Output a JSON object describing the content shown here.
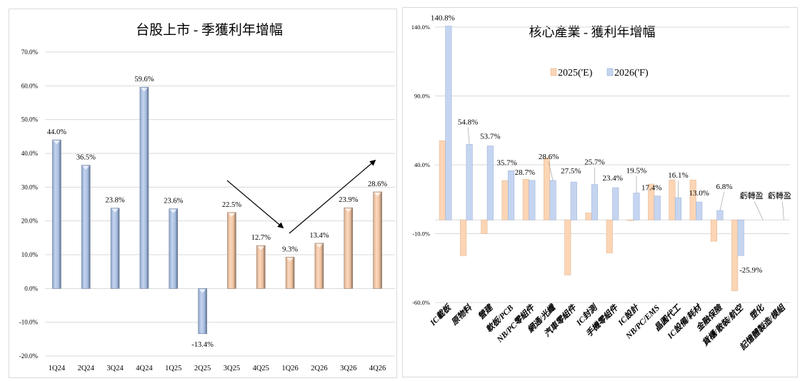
{
  "chart_data": [
    {
      "type": "bar",
      "title": "台股上市 - 季獲利年增幅",
      "xlabel": "",
      "ylabel": "",
      "ylim": [
        -20,
        70
      ],
      "yticks": [
        -20,
        -10,
        0,
        10,
        20,
        30,
        40,
        50,
        60,
        70
      ],
      "ytick_labels": [
        "-20.0%",
        "-10.0%",
        "0.0%",
        "10.0%",
        "20.0%",
        "30.0%",
        "40.0%",
        "50.0%",
        "60.0%",
        "70.0%"
      ],
      "grid": true,
      "categories": [
        "1Q24",
        "2Q24",
        "3Q24",
        "4Q24",
        "1Q25",
        "2Q25",
        "3Q25",
        "4Q25",
        "1Q26",
        "2Q26",
        "3Q26",
        "4Q26"
      ],
      "values": [
        44.0,
        36.5,
        23.8,
        59.6,
        23.6,
        -13.4,
        22.5,
        12.7,
        9.3,
        13.4,
        23.9,
        28.6
      ],
      "data_labels": [
        "44.0%",
        "36.5%",
        "23.8%",
        "59.6%",
        "23.6%",
        "-13.4%",
        "22.5%",
        "12.7%",
        "9.3%",
        "13.4%",
        "23.9%",
        "28.6%"
      ],
      "segments": [
        "actual",
        "actual",
        "actual",
        "actual",
        "actual",
        "actual",
        "forecast",
        "forecast",
        "forecast",
        "forecast",
        "forecast",
        "forecast"
      ],
      "colors": {
        "actual": "#a9bee0",
        "actual_dark": "#6c7fa0",
        "forecast": "#f3c4a2",
        "forecast_dark": "#9a7e6a",
        "arrow": "#000000"
      }
    },
    {
      "type": "bar",
      "title": "核心產業 - 獲利年增幅",
      "xlabel": "",
      "ylabel": "",
      "ylim": [
        -60,
        140
      ],
      "yticks": [
        -60,
        -10,
        40,
        90,
        140
      ],
      "ytick_labels": [
        "-60.0%",
        "-10.0%",
        "40.0%",
        "90.0%",
        "140.0%"
      ],
      "grid": true,
      "legend": "top-center",
      "categories": [
        "IC載板",
        "原物料",
        "營建",
        "軟板/PCB",
        "NB/PC零組件",
        "網通/光纖",
        "汽車零組件",
        "IC封測",
        "手機零組件",
        "IC設計",
        "NB/PC/EMS",
        "晶圓代工",
        "IC設備/耗材",
        "金融保險",
        "貨櫃/散裝/航空",
        "塑化",
        "記憶體製造/模組"
      ],
      "series": [
        {
          "name": "2025('E)",
          "color": "#fcd5b5",
          "values": [
            57.5,
            -26.0,
            -10.0,
            28.5,
            29.5,
            45.0,
            -40.0,
            5.0,
            -24.0,
            -0.5,
            26.0,
            29.0,
            29.0,
            -15.5,
            -51.5,
            null,
            null
          ]
        },
        {
          "name": "2026('F)",
          "color": "#c5d5f1",
          "values": [
            140.8,
            54.8,
            53.7,
            35.7,
            28.7,
            28.6,
            27.5,
            25.7,
            23.4,
            19.5,
            17.4,
            16.1,
            13.0,
            6.8,
            -25.9,
            null,
            null
          ],
          "data_labels": [
            "140.8%",
            "54.8%",
            "53.7%",
            "35.7%",
            "28.7%",
            "28.6%",
            "27.5%",
            "25.7%",
            "23.4%",
            "19.5%",
            "17.4%",
            "16.1%",
            "13.0%",
            "6.8%",
            "-25.9%",
            "虧轉盈",
            "虧轉盈"
          ]
        }
      ]
    }
  ]
}
